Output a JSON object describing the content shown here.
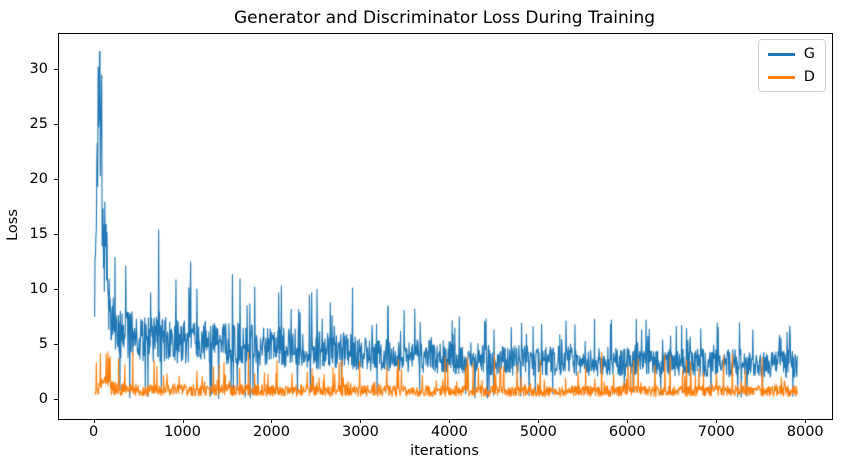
{
  "chart_data": {
    "type": "line",
    "title": "Generator and Discriminator Loss During Training",
    "xlabel": "iterations",
    "ylabel": "Loss",
    "xlim": [
      -400,
      8290
    ],
    "ylim": [
      -1.7,
      33.3
    ],
    "xticks": [
      0,
      1000,
      2000,
      3000,
      4000,
      5000,
      6000,
      7000,
      8000
    ],
    "yticks": [
      0,
      5,
      10,
      15,
      20,
      25,
      30
    ],
    "grid": false,
    "x_start": 0,
    "x_end": 7900,
    "x_step": 5,
    "legend": {
      "position": "upper right",
      "entries": [
        {
          "label": "G",
          "color": "#1f77b4"
        },
        {
          "label": "D",
          "color": "#ff7f0e"
        }
      ]
    },
    "series": [
      {
        "name": "G",
        "color": "#1f77b4",
        "seed": 1337,
        "mean_envelope": [
          [
            0,
            8
          ],
          [
            25,
            14
          ],
          [
            45,
            26
          ],
          [
            60,
            29
          ],
          [
            75,
            20
          ],
          [
            100,
            13
          ],
          [
            140,
            9
          ],
          [
            250,
            6.2
          ],
          [
            600,
            5.6
          ],
          [
            1000,
            5.3
          ],
          [
            1500,
            5.1
          ],
          [
            2000,
            4.9
          ],
          [
            2500,
            4.6
          ],
          [
            3000,
            4.4
          ],
          [
            3500,
            4.1
          ],
          [
            4000,
            3.9
          ],
          [
            4500,
            3.7
          ],
          [
            5000,
            3.6
          ],
          [
            5500,
            3.5
          ],
          [
            6000,
            3.5
          ],
          [
            6500,
            3.4
          ],
          [
            7000,
            3.4
          ],
          [
            7900,
            3.3
          ]
        ],
        "noise": {
          "band_lo": 0.62,
          "band_span": 0.76,
          "spike_prob": 0.05,
          "spike_lo": 1.2,
          "spike_span": 1.0,
          "dip_prob": 0.022,
          "dip_lo": 0.15,
          "dip_span": 0.85,
          "dip_after_x": 250,
          "early_boost_until": 160,
          "early_boost": 1.25,
          "clamp_max": 31.7,
          "clamp_min": 0.08
        },
        "featured_spikes": [
          [
            42,
            30.3
          ],
          [
            55,
            31.7
          ],
          [
            68,
            25.2
          ],
          [
            95,
            17.4
          ],
          [
            230,
            13.0
          ],
          [
            350,
            12.2
          ],
          [
            720,
            15.5
          ],
          [
            1080,
            12.6
          ],
          [
            1550,
            11.4
          ],
          [
            1800,
            10.3
          ],
          [
            2100,
            10.4
          ],
          [
            2500,
            10.1
          ],
          [
            2900,
            10.2
          ],
          [
            3300,
            8.6
          ],
          [
            3600,
            8.3
          ],
          [
            4100,
            7.6
          ],
          [
            4400,
            7.4
          ],
          [
            4800,
            7.0
          ],
          [
            5300,
            7.2
          ],
          [
            5800,
            6.9
          ],
          [
            6200,
            7.3
          ],
          [
            6600,
            6.8
          ],
          [
            7000,
            7.0
          ],
          [
            7400,
            6.4
          ],
          [
            7700,
            5.9
          ]
        ]
      },
      {
        "name": "D",
        "color": "#ff7f0e",
        "seed": 4242,
        "mean_envelope": [
          [
            0,
            0.65
          ],
          [
            80,
            1.1
          ],
          [
            130,
            1.25
          ],
          [
            200,
            1.0
          ],
          [
            400,
            0.9
          ],
          [
            1000,
            0.85
          ],
          [
            3000,
            0.78
          ],
          [
            5000,
            0.75
          ],
          [
            7900,
            0.78
          ]
        ],
        "noise": {
          "band_lo": 0.45,
          "band_span": 1.3,
          "spike_prob": 0.06,
          "spike_lo": 1.8,
          "spike_span": 2.2,
          "bigspike_prob": 0.012,
          "bigspike_lo": 4.0,
          "bigspike_span": 1.5,
          "clamp_max": 4.4,
          "clamp_min": 0.12
        },
        "featured_spikes": [
          [
            130,
            4.2
          ],
          [
            160,
            3.4
          ],
          [
            700,
            3.1
          ],
          [
            1400,
            3.2
          ],
          [
            2050,
            3.6
          ],
          [
            2980,
            3.6
          ],
          [
            4200,
            3.3
          ],
          [
            5700,
            4.35
          ],
          [
            6300,
            3.2
          ],
          [
            7170,
            4.2
          ]
        ]
      }
    ]
  }
}
